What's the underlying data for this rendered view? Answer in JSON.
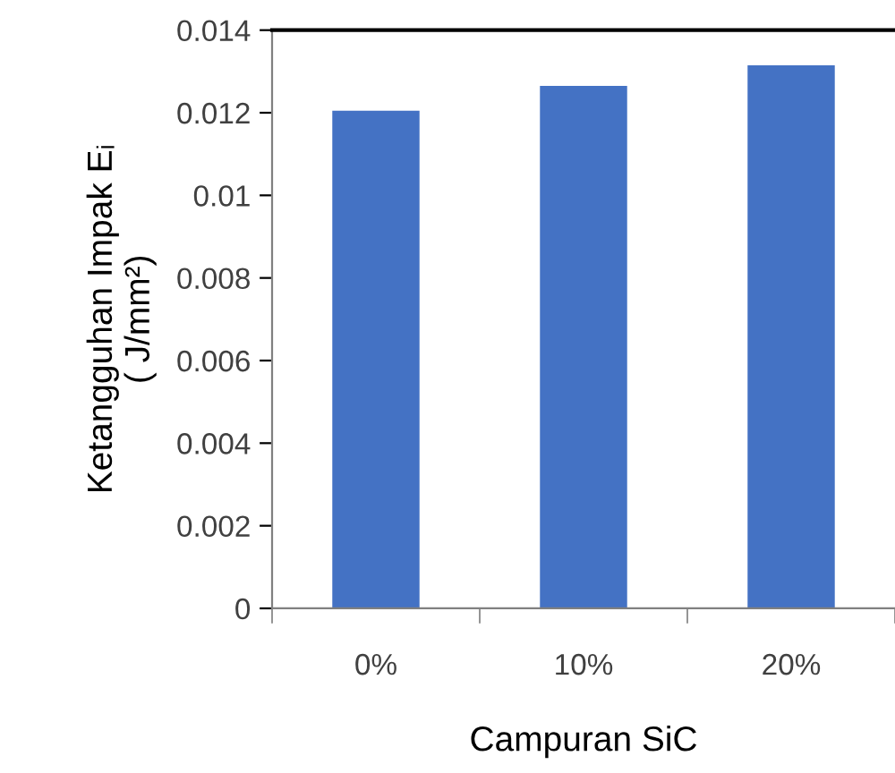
{
  "chart_data": {
    "type": "bar",
    "xlabel": "Campuran SiC",
    "ylabel": "Ketangguhan Impak Eᵢ\n( J/mm²)",
    "categories": [
      "0%",
      "10%",
      "20%"
    ],
    "values": [
      0.01205,
      0.01265,
      0.01315
    ],
    "color": "#4472c4",
    "ylim": [
      0,
      0.014
    ],
    "yticks": [
      0,
      0.002,
      0.004,
      0.006,
      0.008,
      0.01,
      0.012,
      0.014
    ],
    "grid": false
  }
}
